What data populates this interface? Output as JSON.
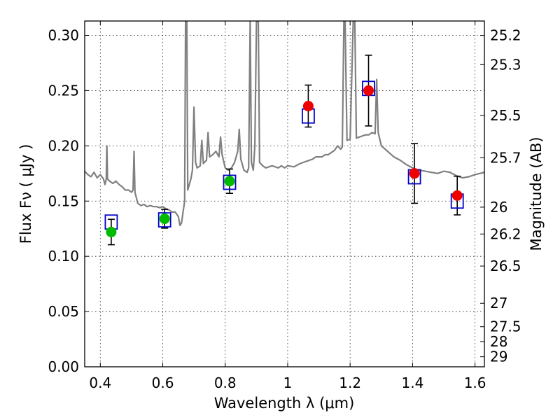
{
  "chart_data": {
    "type": "scatter",
    "xlabel": "Wavelength  λ (μm)",
    "ylabel": "Flux  Fν  ( μJy )",
    "y2label": "Magnitude (AB)",
    "xlim": [
      0.35,
      1.63
    ],
    "ylim": [
      0.0,
      0.313
    ],
    "grid": true,
    "x_ticks": [
      0.4,
      0.6,
      0.8,
      1.0,
      1.2,
      1.4,
      1.6
    ],
    "x_tick_labels": [
      "0.4",
      "0.6",
      "0.8",
      "1",
      "1.2",
      "1.4",
      "1.6"
    ],
    "y_ticks": [
      0.0,
      0.05,
      0.1,
      0.15,
      0.2,
      0.25,
      0.3
    ],
    "y_tick_labels": [
      "0.00",
      "0.05",
      "0.10",
      "0.15",
      "0.20",
      "0.25",
      "0.30"
    ],
    "y2_ticks": [
      {
        "label": "25.2",
        "flux": 0.2999
      },
      {
        "label": "25.3",
        "flux": 0.2735
      },
      {
        "label": "25.5",
        "flux": 0.2275
      },
      {
        "label": "25.7",
        "flux": 0.1892
      },
      {
        "label": "26",
        "flux": 0.1445
      },
      {
        "label": "26.2",
        "flux": 0.1202
      },
      {
        "label": "26.5",
        "flux": 0.0912
      },
      {
        "label": "27",
        "flux": 0.0575
      },
      {
        "label": "27.5",
        "flux": 0.0363
      },
      {
        "label": "28",
        "flux": 0.0229
      },
      {
        "label": "29",
        "flux": 0.0091
      }
    ],
    "series": [
      {
        "marker": "filled-circle",
        "color": "#00bb00",
        "points": [
          {
            "x": 0.435,
            "y": 0.122,
            "err": 0.0115
          },
          {
            "x": 0.606,
            "y": 0.134,
            "err": 0.0085
          },
          {
            "x": 0.814,
            "y": 0.168,
            "err": 0.011
          }
        ]
      },
      {
        "marker": "filled-circle",
        "color": "#ee0000",
        "points": [
          {
            "x": 1.066,
            "y": 0.236,
            "err": 0.019
          },
          {
            "x": 1.259,
            "y": 0.25,
            "err": 0.032
          },
          {
            "x": 1.406,
            "y": 0.175,
            "err": 0.027
          },
          {
            "x": 1.543,
            "y": 0.155,
            "err": 0.0175
          }
        ]
      },
      {
        "marker": "open-square",
        "color": "#0000cc",
        "points": [
          {
            "x": 0.435,
            "y": 0.131
          },
          {
            "x": 0.606,
            "y": 0.133
          },
          {
            "x": 0.814,
            "y": 0.167
          },
          {
            "x": 1.066,
            "y": 0.227
          },
          {
            "x": 1.259,
            "y": 0.252
          },
          {
            "x": 1.406,
            "y": 0.172
          },
          {
            "x": 1.543,
            "y": 0.15
          }
        ]
      },
      {
        "type": "line",
        "color": "#808080",
        "points": [
          [
            0.35,
            0.177
          ],
          [
            0.36,
            0.174
          ],
          [
            0.37,
            0.172
          ],
          [
            0.38,
            0.176
          ],
          [
            0.39,
            0.171
          ],
          [
            0.4,
            0.174
          ],
          [
            0.41,
            0.17
          ],
          [
            0.415,
            0.165
          ],
          [
            0.419,
            0.17
          ],
          [
            0.421,
            0.2
          ],
          [
            0.423,
            0.17
          ],
          [
            0.43,
            0.168
          ],
          [
            0.44,
            0.166
          ],
          [
            0.45,
            0.168
          ],
          [
            0.46,
            0.165
          ],
          [
            0.47,
            0.163
          ],
          [
            0.48,
            0.16
          ],
          [
            0.49,
            0.16
          ],
          [
            0.5,
            0.158
          ],
          [
            0.505,
            0.16
          ],
          [
            0.508,
            0.195
          ],
          [
            0.511,
            0.158
          ],
          [
            0.52,
            0.148
          ],
          [
            0.53,
            0.146
          ],
          [
            0.54,
            0.147
          ],
          [
            0.55,
            0.145
          ],
          [
            0.56,
            0.146
          ],
          [
            0.57,
            0.145
          ],
          [
            0.58,
            0.145
          ],
          [
            0.59,
            0.144
          ],
          [
            0.6,
            0.145
          ],
          [
            0.61,
            0.143
          ],
          [
            0.62,
            0.142
          ],
          [
            0.63,
            0.14
          ],
          [
            0.64,
            0.14
          ],
          [
            0.65,
            0.136
          ],
          [
            0.655,
            0.128
          ],
          [
            0.66,
            0.13
          ],
          [
            0.665,
            0.14
          ],
          [
            0.67,
            0.15
          ],
          [
            0.673,
            0.313
          ],
          [
            0.677,
            0.313
          ],
          [
            0.68,
            0.16
          ],
          [
            0.69,
            0.17
          ],
          [
            0.695,
            0.178
          ],
          [
            0.7,
            0.235
          ],
          [
            0.705,
            0.185
          ],
          [
            0.71,
            0.18
          ],
          [
            0.72,
            0.182
          ],
          [
            0.725,
            0.205
          ],
          [
            0.73,
            0.184
          ],
          [
            0.74,
            0.187
          ],
          [
            0.745,
            0.212
          ],
          [
            0.75,
            0.19
          ],
          [
            0.76,
            0.192
          ],
          [
            0.77,
            0.195
          ],
          [
            0.78,
            0.19
          ],
          [
            0.785,
            0.208
          ],
          [
            0.79,
            0.192
          ],
          [
            0.8,
            0.18
          ],
          [
            0.81,
            0.178
          ],
          [
            0.82,
            0.18
          ],
          [
            0.83,
            0.185
          ],
          [
            0.84,
            0.195
          ],
          [
            0.845,
            0.215
          ],
          [
            0.85,
            0.188
          ],
          [
            0.86,
            0.178
          ],
          [
            0.87,
            0.176
          ],
          [
            0.875,
            0.18
          ],
          [
            0.88,
            0.313
          ],
          [
            0.884,
            0.185
          ],
          [
            0.89,
            0.178
          ],
          [
            0.895,
            0.2
          ],
          [
            0.9,
            0.313
          ],
          [
            0.906,
            0.313
          ],
          [
            0.91,
            0.185
          ],
          [
            0.92,
            0.182
          ],
          [
            0.93,
            0.18
          ],
          [
            0.94,
            0.181
          ],
          [
            0.95,
            0.182
          ],
          [
            0.96,
            0.181
          ],
          [
            0.97,
            0.18
          ],
          [
            0.98,
            0.182
          ],
          [
            0.99,
            0.18
          ],
          [
            1.0,
            0.182
          ],
          [
            1.02,
            0.181
          ],
          [
            1.04,
            0.184
          ],
          [
            1.05,
            0.185
          ],
          [
            1.06,
            0.186
          ],
          [
            1.07,
            0.187
          ],
          [
            1.08,
            0.188
          ],
          [
            1.09,
            0.19
          ],
          [
            1.1,
            0.19
          ],
          [
            1.11,
            0.19
          ],
          [
            1.12,
            0.192
          ],
          [
            1.13,
            0.192
          ],
          [
            1.14,
            0.194
          ],
          [
            1.15,
            0.196
          ],
          [
            1.16,
            0.2
          ],
          [
            1.17,
            0.197
          ],
          [
            1.175,
            0.199
          ],
          [
            1.18,
            0.313
          ],
          [
            1.184,
            0.313
          ],
          [
            1.19,
            0.205
          ],
          [
            1.2,
            0.206
          ],
          [
            1.21,
            0.313
          ],
          [
            1.215,
            0.313
          ],
          [
            1.22,
            0.207
          ],
          [
            1.23,
            0.208
          ],
          [
            1.24,
            0.209
          ],
          [
            1.25,
            0.21
          ],
          [
            1.26,
            0.21
          ],
          [
            1.27,
            0.212
          ],
          [
            1.28,
            0.211
          ],
          [
            1.285,
            0.26
          ],
          [
            1.29,
            0.212
          ],
          [
            1.3,
            0.2
          ],
          [
            1.32,
            0.195
          ],
          [
            1.34,
            0.19
          ],
          [
            1.36,
            0.187
          ],
          [
            1.38,
            0.183
          ],
          [
            1.4,
            0.18
          ],
          [
            1.42,
            0.178
          ],
          [
            1.44,
            0.177
          ],
          [
            1.46,
            0.176
          ],
          [
            1.48,
            0.175
          ],
          [
            1.5,
            0.177
          ],
          [
            1.52,
            0.176
          ],
          [
            1.54,
            0.173
          ],
          [
            1.56,
            0.171
          ],
          [
            1.58,
            0.172
          ],
          [
            1.6,
            0.174
          ],
          [
            1.63,
            0.176
          ]
        ]
      }
    ]
  }
}
